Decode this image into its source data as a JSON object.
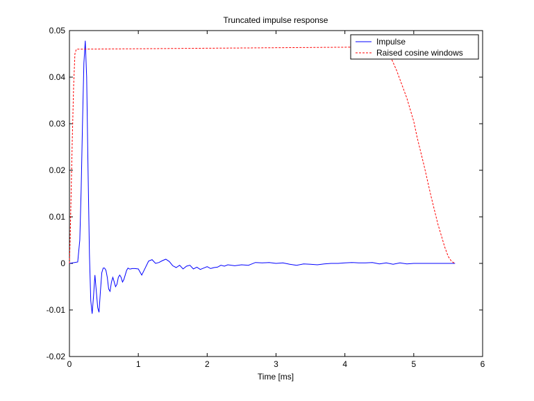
{
  "chart_data": {
    "type": "line",
    "title": "Truncated impulse response",
    "xlabel": "Time [ms]",
    "ylabel": "",
    "xlim": [
      0,
      6
    ],
    "ylim": [
      -0.02,
      0.05
    ],
    "xticks": [
      0,
      1,
      2,
      3,
      4,
      5,
      6
    ],
    "yticks": [
      -0.02,
      -0.01,
      0,
      0.01,
      0.02,
      0.03,
      0.04,
      0.05
    ],
    "xtick_labels": [
      "0",
      "1",
      "2",
      "3",
      "4",
      "5",
      "6"
    ],
    "ytick_labels": [
      "-0.02",
      "-0.01",
      "0",
      "0.01",
      "0.02",
      "0.03",
      "0.04",
      "0.05"
    ],
    "grid": false,
    "legend_position": "top-right",
    "series": [
      {
        "name": "Impulse",
        "color": "#0000ff",
        "style": "solid",
        "x": [
          0,
          0.12,
          0.15,
          0.17,
          0.19,
          0.21,
          0.23,
          0.25,
          0.27,
          0.29,
          0.31,
          0.33,
          0.35,
          0.37,
          0.39,
          0.41,
          0.43,
          0.45,
          0.47,
          0.49,
          0.51,
          0.53,
          0.55,
          0.57,
          0.59,
          0.61,
          0.63,
          0.65,
          0.67,
          0.69,
          0.71,
          0.73,
          0.75,
          0.77,
          0.79,
          0.81,
          0.83,
          0.85,
          0.87,
          0.89,
          0.91,
          0.95,
          1.0,
          1.05,
          1.1,
          1.15,
          1.2,
          1.25,
          1.3,
          1.35,
          1.4,
          1.45,
          1.5,
          1.55,
          1.6,
          1.65,
          1.7,
          1.75,
          1.8,
          1.85,
          1.9,
          1.95,
          2.0,
          2.05,
          2.1,
          2.15,
          2.2,
          2.25,
          2.3,
          2.4,
          2.5,
          2.6,
          2.7,
          2.8,
          2.9,
          3.0,
          3.1,
          3.2,
          3.3,
          3.4,
          3.5,
          3.6,
          3.7,
          3.8,
          3.9,
          4.0,
          4.1,
          4.2,
          4.3,
          4.4,
          4.5,
          4.6,
          4.7,
          4.8,
          4.9,
          5.0,
          5.2,
          5.4,
          5.6
        ],
        "y": [
          0,
          0.0003,
          0.005,
          0.016,
          0.03,
          0.043,
          0.0478,
          0.04,
          0.02,
          0.002,
          -0.008,
          -0.0108,
          -0.007,
          -0.0025,
          -0.006,
          -0.0095,
          -0.0105,
          -0.006,
          -0.002,
          -0.001,
          -0.001,
          -0.0015,
          -0.003,
          -0.0055,
          -0.006,
          -0.004,
          -0.003,
          -0.004,
          -0.005,
          -0.0045,
          -0.003,
          -0.0025,
          -0.003,
          -0.004,
          -0.0035,
          -0.0025,
          -0.0015,
          -0.001,
          -0.0012,
          -0.0012,
          -0.0011,
          -0.0011,
          -0.0012,
          -0.0025,
          -0.001,
          0.0005,
          0.0008,
          0.0,
          0.0002,
          0.0006,
          0.0009,
          0.0004,
          -0.0005,
          -0.0009,
          -0.0004,
          -0.0012,
          -0.0006,
          -0.0004,
          -0.0012,
          -0.0008,
          -0.0013,
          -0.001,
          -0.0007,
          -0.0011,
          -0.0009,
          -0.0008,
          -0.0004,
          -0.0006,
          -0.0003,
          -0.0005,
          -0.0003,
          -0.0004,
          0.0002,
          0.0001,
          0.0002,
          0.0,
          0.0001,
          -0.0002,
          -0.0004,
          -0.0001,
          -0.0002,
          -0.0003,
          -0.0001,
          0.0,
          0.0,
          0.0001,
          0.0002,
          0.0001,
          0.0001,
          0.0002,
          -0.0001,
          0.0001,
          -0.0002,
          0.0001,
          -0.0001,
          0.0,
          0.0,
          0.0,
          0.0
        ]
      },
      {
        "name": "Raised cosine windows",
        "color": "#ff0000",
        "style": "dashed",
        "x": [
          0,
          0.01,
          0.02,
          0.04,
          0.06,
          0.08,
          0.1,
          4.6,
          4.75,
          4.9,
          5.0,
          5.05,
          5.15,
          5.25,
          5.35,
          5.45,
          5.5,
          5.55,
          5.6
        ],
        "y": [
          0,
          0.005,
          0.012,
          0.026,
          0.038,
          0.045,
          0.046,
          0.0465,
          0.0415,
          0.0355,
          0.0305,
          0.027,
          0.021,
          0.0145,
          0.0085,
          0.0035,
          0.0015,
          0.0004,
          0
        ]
      }
    ]
  }
}
